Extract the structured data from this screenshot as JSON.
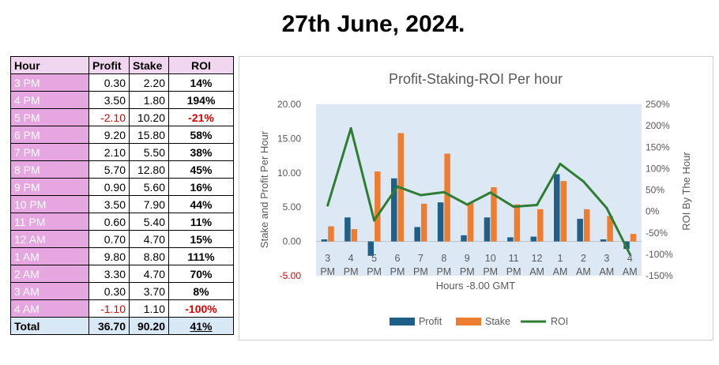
{
  "title": "27th June, 2024.",
  "table": {
    "headers": [
      "Hour",
      "Profit",
      "Stake",
      "ROI"
    ],
    "rows": [
      {
        "hour": "3 PM",
        "profit": "0.30",
        "stake": "2.20",
        "roi": "14%"
      },
      {
        "hour": "4 PM",
        "profit": "3.50",
        "stake": "1.80",
        "roi": "194%"
      },
      {
        "hour": "5 PM",
        "profit": "-2.10",
        "stake": "10.20",
        "roi": "-21%"
      },
      {
        "hour": "6 PM",
        "profit": "9.20",
        "stake": "15.80",
        "roi": "58%"
      },
      {
        "hour": "7 PM",
        "profit": "2.10",
        "stake": "5.50",
        "roi": "38%"
      },
      {
        "hour": "8 PM",
        "profit": "5.70",
        "stake": "12.80",
        "roi": "45%"
      },
      {
        "hour": "9 PM",
        "profit": "0.90",
        "stake": "5.60",
        "roi": "16%"
      },
      {
        "hour": "10 PM",
        "profit": "3.50",
        "stake": "7.90",
        "roi": "44%"
      },
      {
        "hour": "11 PM",
        "profit": "0.60",
        "stake": "5.40",
        "roi": "11%"
      },
      {
        "hour": "12 AM",
        "profit": "0.70",
        "stake": "4.70",
        "roi": "15%"
      },
      {
        "hour": "1 AM",
        "profit": "9.80",
        "stake": "8.80",
        "roi": "111%"
      },
      {
        "hour": "2 AM",
        "profit": "3.30",
        "stake": "4.70",
        "roi": "70%"
      },
      {
        "hour": "3 AM",
        "profit": "0.30",
        "stake": "3.70",
        "roi": "8%"
      },
      {
        "hour": "4 AM",
        "profit": "-1.10",
        "stake": "1.10",
        "roi": "-100%"
      }
    ],
    "total": {
      "hour": "Total",
      "profit": "36.70",
      "stake": "90.20",
      "roi": "41%"
    }
  },
  "colors": {
    "profit": "#1f5f88",
    "stake": "#ed7d31",
    "roi": "#2e7d32",
    "plot_bg": "#dce9f5",
    "negative": "#e00000"
  },
  "chart_data": {
    "type": "bar",
    "title": "Profit-Staking-ROI Per hour",
    "xlabel": "Hours -8.00 GMT",
    "ylabel": "Stake and Profit Per Hour",
    "y2label": "ROI By The Hour",
    "categories": [
      [
        "3",
        "PM"
      ],
      [
        "4",
        "PM"
      ],
      [
        "5",
        "PM"
      ],
      [
        "6",
        "PM"
      ],
      [
        "7",
        "PM"
      ],
      [
        "8",
        "PM"
      ],
      [
        "9",
        "PM"
      ],
      [
        "10",
        "PM"
      ],
      [
        "11",
        "PM"
      ],
      [
        "12",
        "AM"
      ],
      [
        "1",
        "AM"
      ],
      [
        "2",
        "AM"
      ],
      [
        "3",
        "AM"
      ],
      [
        "4",
        "AM"
      ]
    ],
    "series": [
      {
        "name": "Profit",
        "type": "bar",
        "axis": "left",
        "values": [
          0.3,
          3.5,
          -2.1,
          9.2,
          2.1,
          5.7,
          0.9,
          3.5,
          0.6,
          0.7,
          9.8,
          3.3,
          0.3,
          -1.1
        ]
      },
      {
        "name": "Stake",
        "type": "bar",
        "axis": "left",
        "values": [
          2.2,
          1.8,
          10.2,
          15.8,
          5.5,
          12.8,
          5.6,
          7.9,
          5.4,
          4.7,
          8.8,
          4.7,
          3.7,
          1.1
        ]
      },
      {
        "name": "ROI",
        "type": "line",
        "axis": "right",
        "values": [
          14,
          194,
          -21,
          58,
          38,
          45,
          16,
          44,
          11,
          15,
          111,
          70,
          8,
          -100
        ]
      }
    ],
    "ylim": [
      -5,
      20
    ],
    "y_ticks": [
      "-5.00",
      "0.00",
      "5.00",
      "10.00",
      "15.00",
      "20.00"
    ],
    "y2lim": [
      -150,
      250
    ],
    "y2_ticks": [
      "-150%",
      "-100%",
      "-50%",
      "0%",
      "50%",
      "100%",
      "150%",
      "200%",
      "250%"
    ],
    "legend_position": "bottom",
    "grid": false
  }
}
